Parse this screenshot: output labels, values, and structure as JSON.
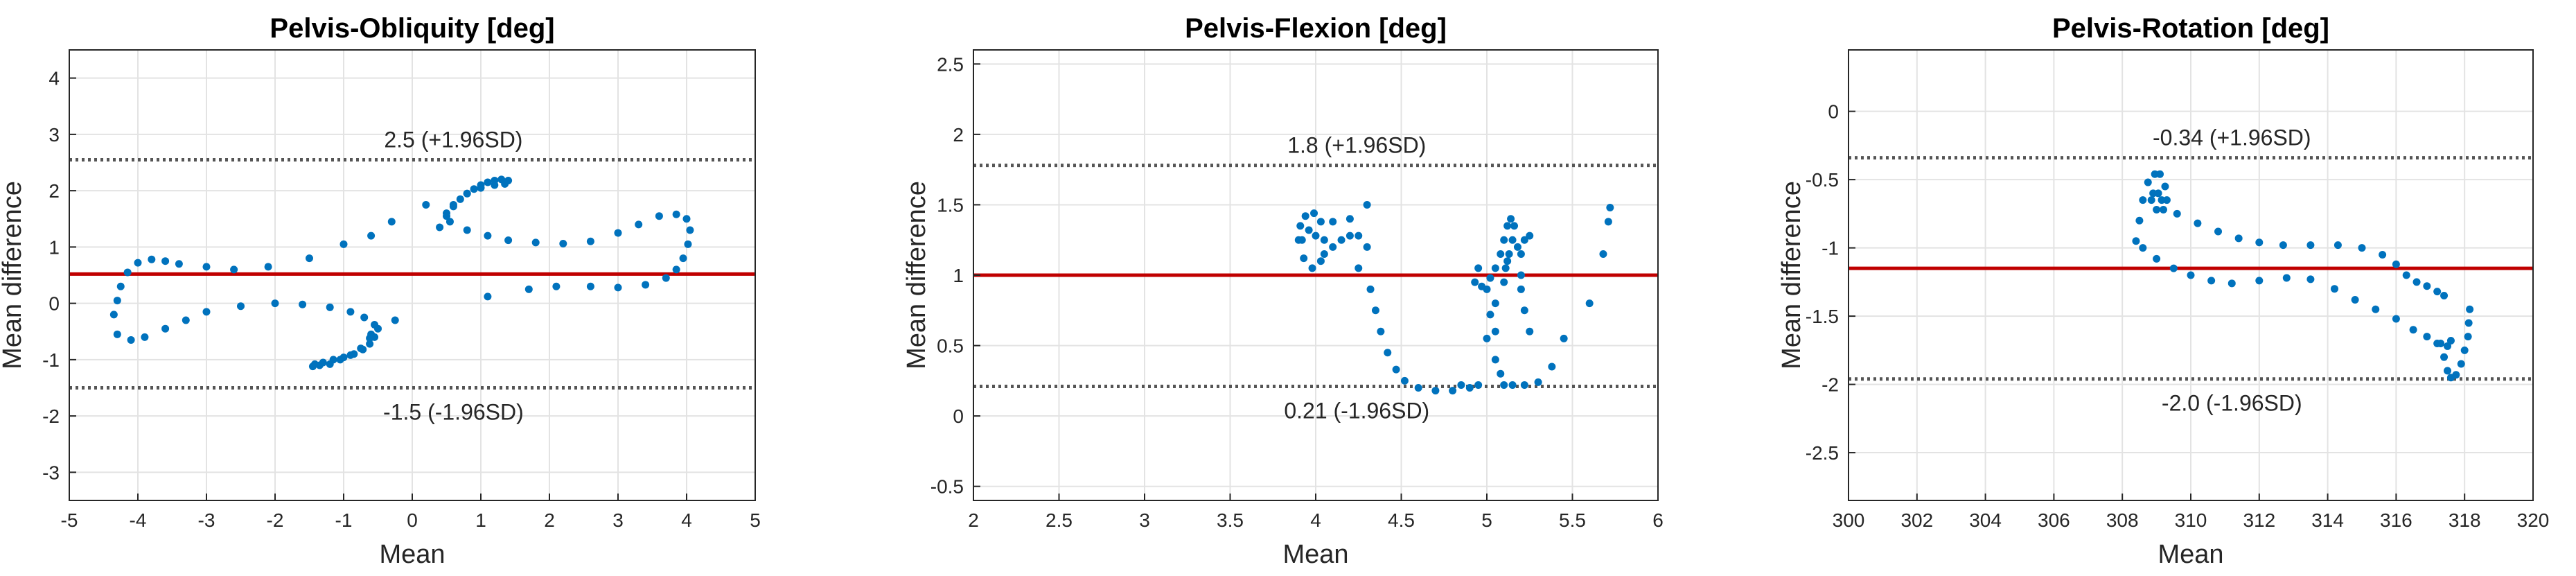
{
  "chart_data": [
    {
      "type": "scatter",
      "title": "Pelvis-Obliquity [deg]",
      "xlabel": "Mean",
      "ylabel": "Mean difference",
      "xlim": [
        -5,
        5
      ],
      "ylim": [
        -3.5,
        4.5
      ],
      "xticks": [
        -5,
        -4,
        -3,
        -2,
        -1,
        0,
        1,
        2,
        3,
        4,
        5
      ],
      "yticks": [
        -3,
        -2,
        -1,
        0,
        1,
        2,
        3,
        4
      ],
      "grid": true,
      "mean_line": 0.52,
      "upper_loa": 2.55,
      "lower_loa": -1.5,
      "upper_label": "2.5 (+1.96SD)",
      "lower_label": "-1.5 (-1.96SD)",
      "colors": {
        "points": "#0072BD",
        "mean": "#C00000",
        "loa": "#555555"
      },
      "points": [
        [
          -4.35,
          -0.2
        ],
        [
          -4.3,
          0.05
        ],
        [
          -4.25,
          0.3
        ],
        [
          -4.15,
          0.55
        ],
        [
          -4.0,
          0.72
        ],
        [
          -3.8,
          0.78
        ],
        [
          -3.6,
          0.75
        ],
        [
          -3.4,
          0.7
        ],
        [
          -3.0,
          0.65
        ],
        [
          -2.6,
          0.6
        ],
        [
          -2.1,
          0.65
        ],
        [
          -1.5,
          0.8
        ],
        [
          -1.0,
          1.05
        ],
        [
          -0.6,
          1.2
        ],
        [
          -0.3,
          1.45
        ],
        [
          0.2,
          1.75
        ],
        [
          0.4,
          1.35
        ],
        [
          0.5,
          1.55
        ],
        [
          0.6,
          1.72
        ],
        [
          0.7,
          1.85
        ],
        [
          0.8,
          1.95
        ],
        [
          0.9,
          2.03
        ],
        [
          1.0,
          2.1
        ],
        [
          1.1,
          2.15
        ],
        [
          1.2,
          2.18
        ],
        [
          1.3,
          2.2
        ],
        [
          1.4,
          2.18
        ],
        [
          1.35,
          2.12
        ],
        [
          1.2,
          2.1
        ],
        [
          1.0,
          2.05
        ],
        [
          0.8,
          1.95
        ],
        [
          0.6,
          1.75
        ],
        [
          0.5,
          1.6
        ],
        [
          0.55,
          1.45
        ],
        [
          0.8,
          1.3
        ],
        [
          1.1,
          1.2
        ],
        [
          1.4,
          1.12
        ],
        [
          1.8,
          1.08
        ],
        [
          2.2,
          1.06
        ],
        [
          2.6,
          1.1
        ],
        [
          3.0,
          1.25
        ],
        [
          3.3,
          1.4
        ],
        [
          3.6,
          1.55
        ],
        [
          3.85,
          1.58
        ],
        [
          4.0,
          1.5
        ],
        [
          4.05,
          1.3
        ],
        [
          4.02,
          1.05
        ],
        [
          3.95,
          0.8
        ],
        [
          3.85,
          0.6
        ],
        [
          3.7,
          0.45
        ],
        [
          3.4,
          0.33
        ],
        [
          3.0,
          0.28
        ],
        [
          2.6,
          0.3
        ],
        [
          2.1,
          0.3
        ],
        [
          1.7,
          0.25
        ],
        [
          1.1,
          0.12
        ],
        [
          -0.25,
          -0.3
        ],
        [
          -0.6,
          -0.55
        ],
        [
          -0.55,
          -0.38
        ],
        [
          -0.7,
          -0.25
        ],
        [
          -0.9,
          -0.15
        ],
        [
          -1.2,
          -0.07
        ],
        [
          -1.6,
          -0.02
        ],
        [
          -2.0,
          0.0
        ],
        [
          -2.5,
          -0.05
        ],
        [
          -3.0,
          -0.15
        ],
        [
          -3.3,
          -0.3
        ],
        [
          -3.6,
          -0.45
        ],
        [
          -3.9,
          -0.6
        ],
        [
          -4.1,
          -0.65
        ],
        [
          -4.3,
          -0.55
        ],
        [
          -0.5,
          -0.45
        ],
        [
          -0.55,
          -0.6
        ],
        [
          -0.62,
          -0.72
        ],
        [
          -0.72,
          -0.82
        ],
        [
          -0.85,
          -0.9
        ],
        [
          -1.0,
          -0.96
        ],
        [
          -1.15,
          -1.0
        ],
        [
          -1.3,
          -1.05
        ],
        [
          -1.42,
          -1.08
        ],
        [
          -1.45,
          -1.12
        ],
        [
          -1.35,
          -1.1
        ],
        [
          -1.2,
          -1.08
        ],
        [
          -1.05,
          -1.0
        ],
        [
          -0.9,
          -0.92
        ],
        [
          -0.75,
          -0.8
        ],
        [
          -0.62,
          -0.62
        ]
      ]
    },
    {
      "type": "scatter",
      "title": "Pelvis-Flexion [deg]",
      "xlabel": "Mean",
      "ylabel": "Mean difference",
      "xlim": [
        2,
        6
      ],
      "ylim": [
        -0.6,
        2.6
      ],
      "xticks": [
        2,
        2.5,
        3,
        3.5,
        4,
        4.5,
        5,
        5.5,
        6
      ],
      "yticks": [
        -0.5,
        0,
        0.5,
        1,
        1.5,
        2,
        2.5
      ],
      "grid": true,
      "mean_line": 1.0,
      "upper_loa": 1.78,
      "lower_loa": 0.21,
      "upper_label": "1.8 (+1.96SD)",
      "lower_label": "0.21 (-1.96SD)",
      "colors": {
        "points": "#0072BD",
        "mean": "#C00000",
        "loa": "#555555"
      },
      "points": [
        [
          3.9,
          1.25
        ],
        [
          3.91,
          1.35
        ],
        [
          3.94,
          1.42
        ],
        [
          3.99,
          1.44
        ],
        [
          4.03,
          1.38
        ],
        [
          4.05,
          1.25
        ],
        [
          4.03,
          1.1
        ],
        [
          3.98,
          1.05
        ],
        [
          3.93,
          1.12
        ],
        [
          3.92,
          1.25
        ],
        [
          3.96,
          1.32
        ],
        [
          4.0,
          1.28
        ],
        [
          4.05,
          1.15
        ],
        [
          4.1,
          1.2
        ],
        [
          4.15,
          1.25
        ],
        [
          4.2,
          1.28
        ],
        [
          4.25,
          1.28
        ],
        [
          4.3,
          1.2
        ],
        [
          4.2,
          1.4
        ],
        [
          4.3,
          1.5
        ],
        [
          4.1,
          1.38
        ],
        [
          4.25,
          1.05
        ],
        [
          4.32,
          0.9
        ],
        [
          4.35,
          0.75
        ],
        [
          4.38,
          0.6
        ],
        [
          4.42,
          0.45
        ],
        [
          4.47,
          0.33
        ],
        [
          4.52,
          0.25
        ],
        [
          4.6,
          0.2
        ],
        [
          4.7,
          0.18
        ],
        [
          4.8,
          0.18
        ],
        [
          4.9,
          0.2
        ],
        [
          4.95,
          0.22
        ],
        [
          4.85,
          0.22
        ],
        [
          4.93,
          0.95
        ],
        [
          4.95,
          1.05
        ],
        [
          4.97,
          0.92
        ],
        [
          5.0,
          0.9
        ],
        [
          5.02,
          0.98
        ],
        [
          5.05,
          1.05
        ],
        [
          5.08,
          1.15
        ],
        [
          5.1,
          1.25
        ],
        [
          5.12,
          1.35
        ],
        [
          5.14,
          1.4
        ],
        [
          5.16,
          1.35
        ],
        [
          5.15,
          1.25
        ],
        [
          5.13,
          1.15
        ],
        [
          5.11,
          1.05
        ],
        [
          5.1,
          0.95
        ],
        [
          5.12,
          1.1
        ],
        [
          5.18,
          1.2
        ],
        [
          5.2,
          1.15
        ],
        [
          5.22,
          1.25
        ],
        [
          5.25,
          1.28
        ],
        [
          5.2,
          1.0
        ],
        [
          5.05,
          0.8
        ],
        [
          5.05,
          0.6
        ],
        [
          5.05,
          0.4
        ],
        [
          5.08,
          0.3
        ],
        [
          5.1,
          0.22
        ],
        [
          5.15,
          0.22
        ],
        [
          5.22,
          0.22
        ],
        [
          5.3,
          0.24
        ],
        [
          5.38,
          0.35
        ],
        [
          5.45,
          0.55
        ],
        [
          5.6,
          0.8
        ],
        [
          5.68,
          1.15
        ],
        [
          5.71,
          1.38
        ],
        [
          5.72,
          1.48
        ],
        [
          5.2,
          0.9
        ],
        [
          5.22,
          0.75
        ],
        [
          5.25,
          0.6
        ],
        [
          5.02,
          0.72
        ],
        [
          5.0,
          0.55
        ]
      ]
    },
    {
      "type": "scatter",
      "title": "Pelvis-Rotation [deg]",
      "xlabel": "Mean",
      "ylabel": "Mean difference",
      "xlim": [
        300,
        320
      ],
      "ylim": [
        -2.85,
        0.45
      ],
      "xticks": [
        300,
        302,
        304,
        306,
        308,
        310,
        312,
        314,
        316,
        318,
        320
      ],
      "yticks": [
        -2.5,
        -2,
        -1.5,
        -1,
        -0.5,
        0
      ],
      "grid": true,
      "mean_line": -1.15,
      "upper_loa": -0.34,
      "lower_loa": -1.96,
      "upper_label": "-0.34 (+1.96SD)",
      "lower_label": "-2.0 (-1.96SD)",
      "colors": {
        "points": "#0072BD",
        "mean": "#C00000",
        "loa": "#555555"
      },
      "points": [
        [
          308.4,
          -0.95
        ],
        [
          308.5,
          -0.8
        ],
        [
          308.6,
          -0.65
        ],
        [
          308.75,
          -0.52
        ],
        [
          308.95,
          -0.46
        ],
        [
          309.1,
          -0.46
        ],
        [
          309.25,
          -0.55
        ],
        [
          309.3,
          -0.65
        ],
        [
          309.2,
          -0.72
        ],
        [
          309.0,
          -0.72
        ],
        [
          308.85,
          -0.65
        ],
        [
          308.9,
          -0.6
        ],
        [
          309.05,
          -0.6
        ],
        [
          309.15,
          -0.65
        ],
        [
          309.6,
          -0.75
        ],
        [
          310.2,
          -0.82
        ],
        [
          310.8,
          -0.88
        ],
        [
          311.4,
          -0.93
        ],
        [
          312.0,
          -0.96
        ],
        [
          312.7,
          -0.98
        ],
        [
          313.5,
          -0.98
        ],
        [
          314.3,
          -0.98
        ],
        [
          315.0,
          -1.0
        ],
        [
          315.6,
          -1.05
        ],
        [
          316.0,
          -1.12
        ],
        [
          316.3,
          -1.2
        ],
        [
          316.6,
          -1.25
        ],
        [
          316.9,
          -1.28
        ],
        [
          317.2,
          -1.32
        ],
        [
          317.4,
          -1.35
        ],
        [
          308.6,
          -1.0
        ],
        [
          309.0,
          -1.08
        ],
        [
          309.5,
          -1.15
        ],
        [
          310.0,
          -1.2
        ],
        [
          310.6,
          -1.24
        ],
        [
          311.2,
          -1.26
        ],
        [
          312.0,
          -1.24
        ],
        [
          312.8,
          -1.22
        ],
        [
          313.5,
          -1.23
        ],
        [
          314.2,
          -1.3
        ],
        [
          314.8,
          -1.38
        ],
        [
          315.4,
          -1.45
        ],
        [
          316.0,
          -1.52
        ],
        [
          316.5,
          -1.6
        ],
        [
          316.9,
          -1.65
        ],
        [
          317.2,
          -1.7
        ],
        [
          317.6,
          -1.68
        ],
        [
          317.5,
          -1.72
        ],
        [
          317.3,
          -1.7
        ],
        [
          317.4,
          -1.8
        ],
        [
          317.5,
          -1.9
        ],
        [
          317.6,
          -1.95
        ],
        [
          317.75,
          -1.93
        ],
        [
          317.9,
          -1.85
        ],
        [
          318.0,
          -1.75
        ],
        [
          318.1,
          -1.65
        ],
        [
          318.12,
          -1.55
        ],
        [
          318.15,
          -1.45
        ]
      ]
    }
  ]
}
